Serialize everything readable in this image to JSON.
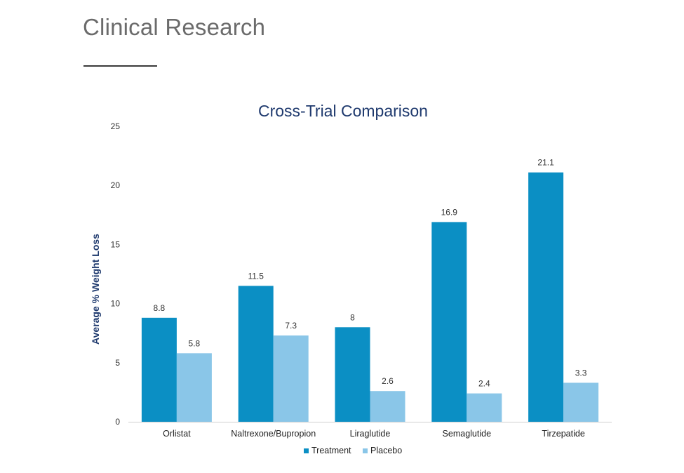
{
  "page": {
    "title": "Clinical Research"
  },
  "chart_data": {
    "type": "bar",
    "title": "Cross-Trial Comparison",
    "xlabel": "",
    "ylabel": "Average % Weight Loss",
    "ylim": [
      0,
      25
    ],
    "yticks": [
      0,
      5,
      10,
      15,
      20,
      25
    ],
    "grid": false,
    "legend_position": "bottom",
    "categories": [
      "Orlistat",
      "Naltrexone/Bupropion",
      "Liraglutide",
      "Semaglutide",
      "Tirzepatide"
    ],
    "series": [
      {
        "name": "Treatment",
        "values": [
          8.8,
          11.5,
          8,
          16.9,
          21.1
        ],
        "color": "#0b8fc4"
      },
      {
        "name": "Placebo",
        "values": [
          5.8,
          7.3,
          2.6,
          2.4,
          3.3
        ],
        "color": "#8ac6e8"
      }
    ]
  }
}
